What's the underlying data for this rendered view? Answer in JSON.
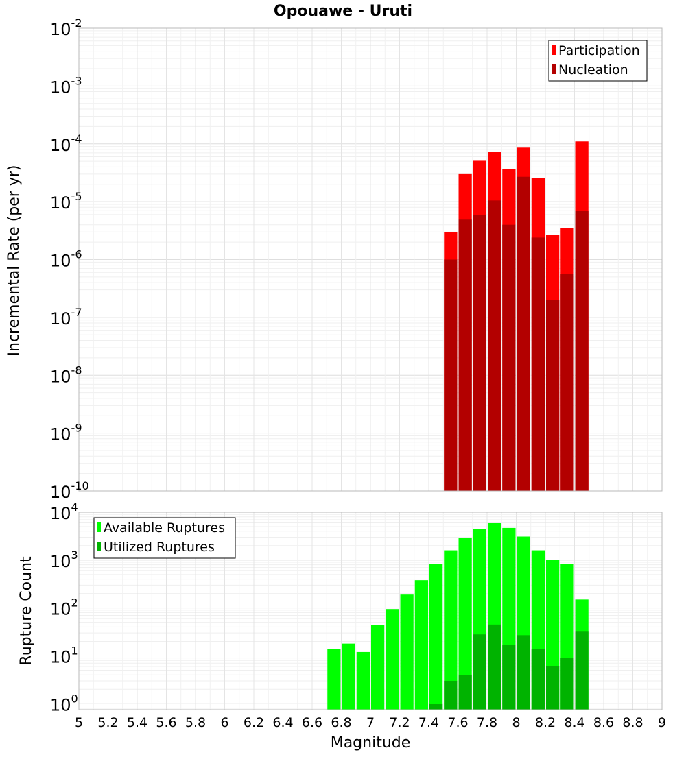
{
  "title": "Opouawe - Uruti",
  "xlabel": "Magnitude",
  "x_ticks": [
    "5",
    "5.2",
    "5.4",
    "5.6",
    "5.8",
    "6",
    "6.2",
    "6.4",
    "6.6",
    "6.8",
    "7",
    "7.2",
    "7.4",
    "7.6",
    "7.8",
    "8",
    "8.2",
    "8.4",
    "8.6",
    "8.8",
    "9"
  ],
  "chart_data": [
    {
      "type": "bar",
      "ylabel": "Incremental Rate (per yr)",
      "y_scale": "log",
      "ylim": [
        1e-10,
        0.01
      ],
      "y_ticks": [
        {
          "base": "10",
          "exp": "-10"
        },
        {
          "base": "10",
          "exp": "-9"
        },
        {
          "base": "10",
          "exp": "-8"
        },
        {
          "base": "10",
          "exp": "-7"
        },
        {
          "base": "10",
          "exp": "-6"
        },
        {
          "base": "10",
          "exp": "-5"
        },
        {
          "base": "10",
          "exp": "-4"
        },
        {
          "base": "10",
          "exp": "-3"
        },
        {
          "base": "10",
          "exp": "-2"
        }
      ],
      "xlim": [
        5,
        9
      ],
      "grid": true,
      "legend": "top-right",
      "x": [
        7.55,
        7.65,
        7.75,
        7.85,
        7.95,
        8.05,
        8.15,
        8.25,
        8.35,
        8.45
      ],
      "series": [
        {
          "name": "Participation",
          "color": "#ff0000",
          "values": [
            3e-06,
            3e-05,
            5.1e-05,
            7.2e-05,
            3.7e-05,
            8.6e-05,
            2.6e-05,
            2.7e-06,
            3.5e-06,
            0.00011
          ]
        },
        {
          "name": "Nucleation",
          "color": "#b30000",
          "values": [
            1e-06,
            4.9e-06,
            5.9e-06,
            1.05e-05,
            4e-06,
            2.7e-05,
            2.4e-06,
            2e-07,
            5.7e-07,
            7e-06
          ]
        }
      ]
    },
    {
      "type": "bar",
      "ylabel": "Rupture Count",
      "y_scale": "log",
      "ylim": [
        0.75,
        10000
      ],
      "y_ticks": [
        {
          "base": "10",
          "exp": "0"
        },
        {
          "base": "10",
          "exp": "1"
        },
        {
          "base": "10",
          "exp": "2"
        },
        {
          "base": "10",
          "exp": "3"
        },
        {
          "base": "10",
          "exp": "4"
        }
      ],
      "xlim": [
        5,
        9
      ],
      "grid": true,
      "legend": "top-left",
      "x": [
        6.75,
        6.85,
        6.95,
        7.05,
        7.15,
        7.25,
        7.35,
        7.45,
        7.55,
        7.65,
        7.75,
        7.85,
        7.95,
        8.05,
        8.15,
        8.25,
        8.35,
        8.45
      ],
      "series": [
        {
          "name": "Available Ruptures",
          "color": "#00ff00",
          "values": [
            14,
            18,
            12,
            44,
            95,
            190,
            380,
            820,
            1600,
            2900,
            4500,
            5900,
            4700,
            3100,
            1600,
            1000,
            820,
            150
          ]
        },
        {
          "name": "Utilized Ruptures",
          "color": "#00b300",
          "values": [
            0,
            0,
            0,
            0,
            0,
            0,
            0,
            1,
            3,
            4,
            28,
            45,
            17,
            27,
            14,
            6,
            9,
            33
          ]
        }
      ]
    }
  ]
}
